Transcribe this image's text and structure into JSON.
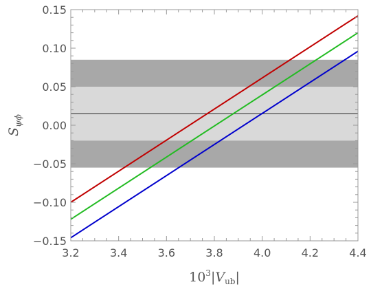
{
  "chart_data": {
    "type": "line",
    "title": "",
    "xlabel_prefix": "10",
    "xlabel_exp": "3",
    "xlabel_var": "|V",
    "xlabel_sub": "ub",
    "xlabel_close": "|",
    "ylabel_main": "S",
    "ylabel_sub": "ψϕ",
    "xlim": [
      3.2,
      4.4
    ],
    "ylim": [
      -0.15,
      0.15
    ],
    "x_ticks": [
      "3.2",
      "3.4",
      "3.6",
      "3.8",
      "4.0",
      "4.2",
      "4.4"
    ],
    "y_ticks": [
      "−0.15",
      "−0.10",
      "−0.05",
      "0.00",
      "0.05",
      "0.10",
      "0.15"
    ],
    "grid": false,
    "bands": [
      {
        "y0": -0.055,
        "y1": 0.085,
        "color": "#a8a8a8"
      },
      {
        "y0": -0.02,
        "y1": 0.05,
        "color": "#d9d9d9"
      }
    ],
    "hline": {
      "y": 0.015,
      "color": "#555555"
    },
    "series": [
      {
        "color": "#c00000",
        "x": [
          3.2,
          4.4
        ],
        "y": [
          -0.1,
          0.142
        ]
      },
      {
        "color": "#22bb22",
        "x": [
          3.2,
          4.4
        ],
        "y": [
          -0.122,
          0.12
        ]
      },
      {
        "color": "#0000cc",
        "x": [
          3.2,
          4.4
        ],
        "y": [
          -0.146,
          0.096
        ]
      }
    ]
  }
}
